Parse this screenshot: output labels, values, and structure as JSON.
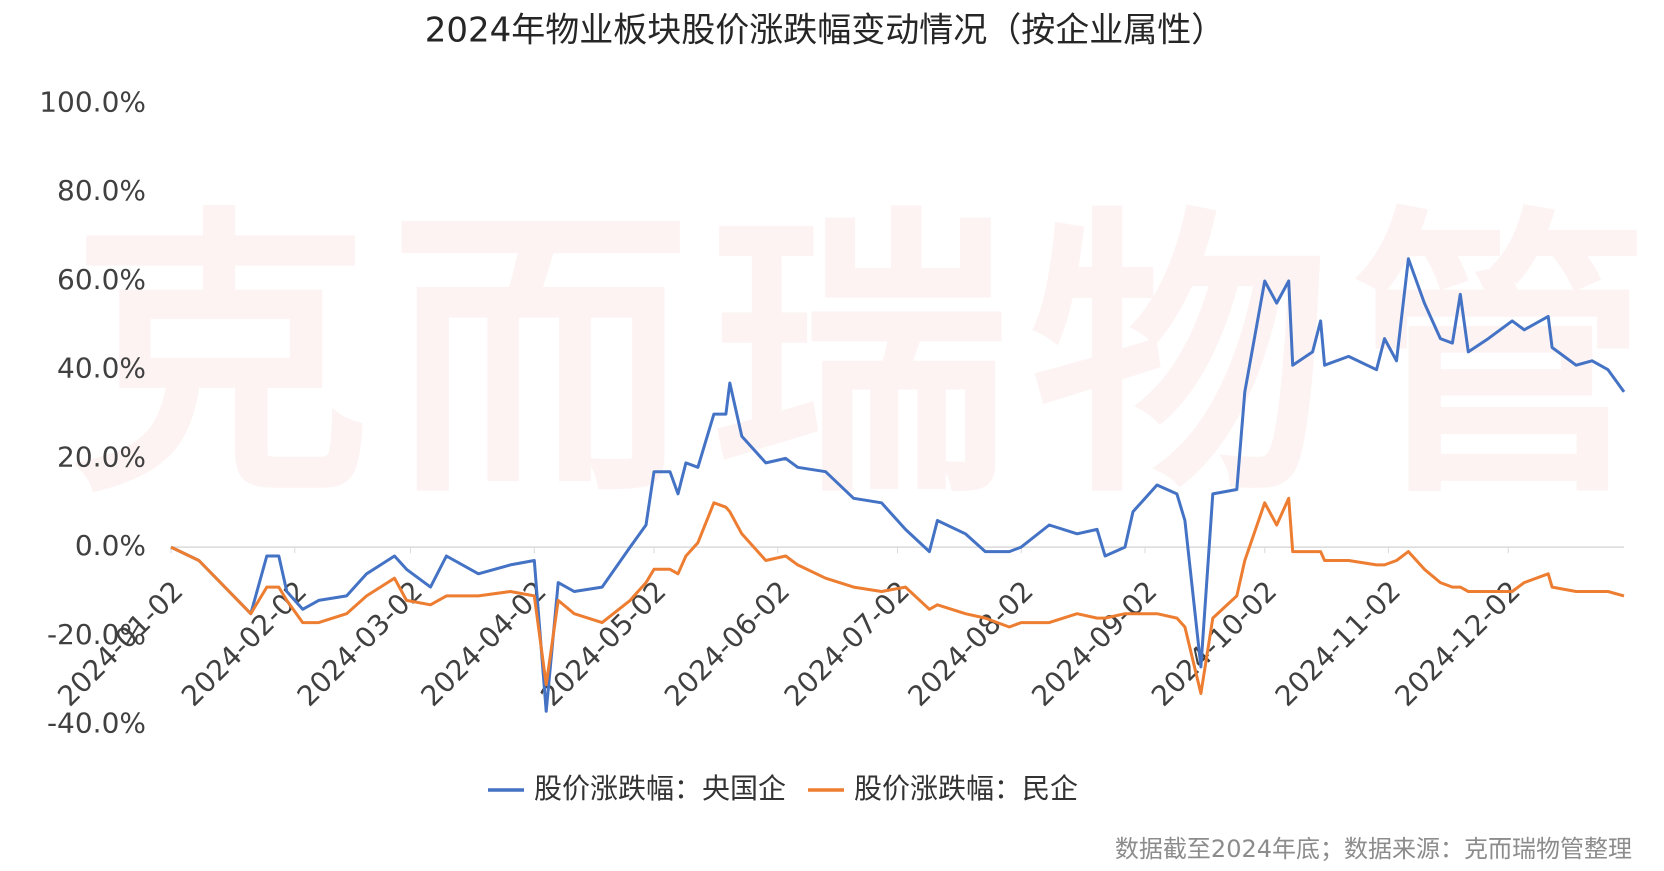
{
  "chart_data": {
    "type": "line",
    "title": "2024年物业板块股价涨跌幅变动情况（按企业属性）",
    "watermark": "克而瑞物管",
    "note": "数据截至2024年底；数据来源：克而瑞物管整理",
    "x": [
      "2024-01-02",
      "2024-01-09",
      "2024-01-22",
      "2024-01-26",
      "2024-01-29",
      "2024-01-31",
      "2024-02-04",
      "2024-02-08",
      "2024-02-15",
      "2024-02-20",
      "2024-02-27",
      "2024-03-01",
      "2024-03-07",
      "2024-03-11",
      "2024-03-19",
      "2024-03-27",
      "2024-04-02",
      "2024-04-05",
      "2024-04-08",
      "2024-04-12",
      "2024-04-19",
      "2024-04-26",
      "2024-04-30",
      "2024-05-02",
      "2024-05-06",
      "2024-05-08",
      "2024-05-10",
      "2024-05-13",
      "2024-05-17",
      "2024-05-20",
      "2024-05-21",
      "2024-05-24",
      "2024-05-30",
      "2024-06-04",
      "2024-06-07",
      "2024-06-14",
      "2024-06-21",
      "2024-06-28",
      "2024-07-04",
      "2024-07-10",
      "2024-07-12",
      "2024-07-19",
      "2024-07-24",
      "2024-07-30",
      "2024-08-02",
      "2024-08-09",
      "2024-08-16",
      "2024-08-21",
      "2024-08-23",
      "2024-08-28",
      "2024-08-30",
      "2024-09-05",
      "2024-09-10",
      "2024-09-12",
      "2024-09-16",
      "2024-09-19",
      "2024-09-25",
      "2024-09-27",
      "2024-10-02",
      "2024-10-05",
      "2024-10-08",
      "2024-10-09",
      "2024-10-14",
      "2024-10-16",
      "2024-10-17",
      "2024-10-23",
      "2024-10-30",
      "2024-11-01",
      "2024-11-04",
      "2024-11-07",
      "2024-11-11",
      "2024-11-15",
      "2024-11-18",
      "2024-11-20",
      "2024-11-22",
      "2024-11-27",
      "2024-12-03",
      "2024-12-06",
      "2024-12-12",
      "2024-12-13",
      "2024-12-19",
      "2024-12-23",
      "2024-12-27",
      "2024-12-31"
    ],
    "series": [
      {
        "name": "股价涨跌幅：央国企",
        "color": "#4472c4",
        "values": [
          0,
          -3,
          -15,
          -2,
          -2,
          -10,
          -14,
          -12,
          -11,
          -6,
          -2,
          -5,
          -9,
          -2,
          -6,
          -4,
          -3,
          -37,
          -8,
          -10,
          -9,
          0,
          5,
          17,
          17,
          12,
          19,
          18,
          30,
          30,
          37,
          25,
          19,
          20,
          18,
          17,
          11,
          10,
          4,
          -1,
          6,
          3,
          -1,
          -1,
          0,
          5,
          3,
          4,
          -2,
          0,
          8,
          14,
          12,
          6,
          -27,
          12,
          13,
          35,
          60,
          55,
          60,
          41,
          44,
          51,
          41,
          43,
          40,
          47,
          42,
          65,
          55,
          47,
          46,
          57,
          44,
          47,
          51,
          49,
          52,
          45,
          41,
          42,
          40,
          35
        ]
      },
      {
        "name": "股价涨跌幅：民企",
        "color": "#ed7d31",
        "values": [
          0,
          -3,
          -15,
          -9,
          -9,
          -12,
          -17,
          -17,
          -15,
          -11,
          -7,
          -12,
          -13,
          -11,
          -11,
          -10,
          -11,
          -31,
          -12,
          -15,
          -17,
          -12,
          -8,
          -5,
          -5,
          -6,
          -2,
          1,
          10,
          9,
          8,
          3,
          -3,
          -2,
          -4,
          -7,
          -9,
          -10,
          -9,
          -14,
          -13,
          -15,
          -16,
          -18,
          -17,
          -17,
          -15,
          -16,
          -16,
          -15,
          -15,
          -15,
          -16,
          -18,
          -33,
          -16,
          -11,
          -3,
          10,
          5,
          11,
          -1,
          -1,
          -1,
          -3,
          -3,
          -4,
          -4,
          -3,
          -1,
          -5,
          -8,
          -9,
          -9,
          -10,
          -10,
          -10,
          -8,
          -6,
          -9,
          -10,
          -10,
          -10,
          -11
        ]
      }
    ],
    "xlim": [
      "2024-01-02",
      "2024-12-31"
    ],
    "xticks": [
      "2024-01-02",
      "2024-02-02",
      "2024-03-02",
      "2024-04-02",
      "2024-05-02",
      "2024-06-02",
      "2024-07-02",
      "2024-08-02",
      "2024-09-02",
      "2024-10-02",
      "2024-11-02",
      "2024-12-02"
    ],
    "ylim": [
      -40,
      100
    ],
    "yticks": [
      {
        "value": -40,
        "label": "-40.0%"
      },
      {
        "value": -20,
        "label": "-20.0%"
      },
      {
        "value": 0,
        "label": "0.0%"
      },
      {
        "value": 20,
        "label": "20.0%"
      },
      {
        "value": 40,
        "label": "40.0%"
      },
      {
        "value": 60,
        "label": "60.0%"
      },
      {
        "value": 80,
        "label": "80.0%"
      },
      {
        "value": 100,
        "label": "100.0%"
      }
    ],
    "grid": false,
    "legend": "bottom"
  }
}
